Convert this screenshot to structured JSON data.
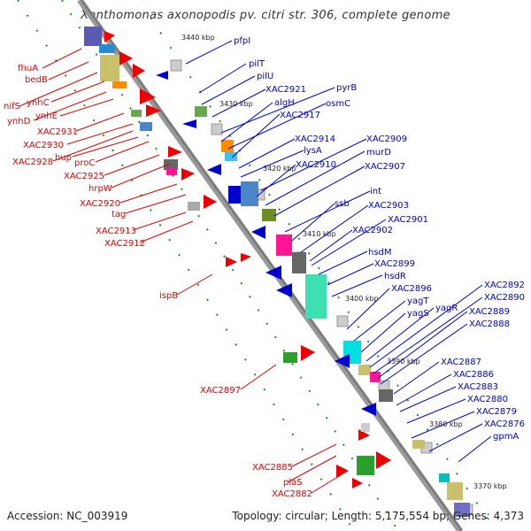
{
  "title": "Xanthomonas axonopodis pv. citri str. 306, complete genome",
  "accession": "Accession: NC_003919",
  "summary": "Topology: circular; Length: 5,175,554 bp; Genes: 4,373",
  "scale_labels": [
    "3440 kbp",
    "3430 kbp",
    "3420 kbp",
    "3410 kbp",
    "3400 kbp",
    "3390 kbp",
    "3380 kbp",
    "3370 kbp"
  ],
  "left_genes": [
    "fhuA",
    "bedB",
    "nifS",
    "ynhC",
    "ynhD",
    "ynhE",
    "XAC2931",
    "XAC2930",
    "XAC2928",
    "hup",
    "proC",
    "XAC2925",
    "hrpW",
    "XAC2920",
    "tag",
    "XAC2913",
    "XAC2912",
    "ispB",
    "XAC2897",
    "XAC2885",
    "plaS",
    "XAC2882"
  ],
  "right_genes": [
    "pfpI",
    "pilT",
    "pilU",
    "XAC2921",
    "pyrB",
    "algH",
    "osmC",
    "XAC2917",
    "XAC2914",
    "lysA",
    "XAC2909",
    "XAC2910",
    "murD",
    "XAC2907",
    "int",
    "ssb",
    "XAC2903",
    "XAC2902",
    "XAC2901",
    "hsdM",
    "XAC2899",
    "hsdR",
    "XAC2896",
    "yagT",
    "yagS",
    "yagR",
    "XAC2892",
    "XAC2890",
    "XAC2889",
    "XAC2888",
    "XAC2887",
    "XAC2886",
    "XAC2883",
    "XAC2880",
    "XAC2879",
    "XAC2876",
    "gpmA"
  ]
}
